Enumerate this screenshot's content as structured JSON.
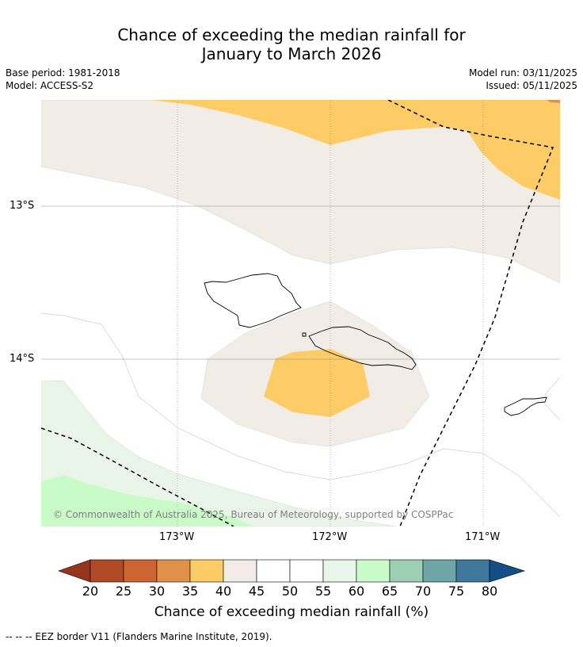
{
  "title": {
    "line1": "Chance of exceeding the median rainfall for",
    "line2": "January to March 2026"
  },
  "meta": {
    "base_period": "Base period: 1981-2018",
    "model": "Model: ACCESS-S2",
    "model_run": "Model run: 03/11/2025",
    "issued": "Issued: 05/11/2025"
  },
  "map": {
    "lat_labels": [
      "13°S",
      "14°S"
    ],
    "lon_labels": [
      "173°W",
      "172°W",
      "171°W"
    ],
    "copyright": "© Commonwealth of Australia 2025, Bureau of Meteorology, supported by COSPPac"
  },
  "colorbar": {
    "ticks": [
      "20",
      "25",
      "30",
      "35",
      "40",
      "45",
      "50",
      "55",
      "60",
      "65",
      "70",
      "75",
      "80"
    ],
    "label": "Chance of exceeding median rainfall (%)",
    "colors": [
      "#b04a27",
      "#cd6533",
      "#e0924a",
      "#fdcc66",
      "#f1ece6",
      "#ffffff",
      "#ffffff",
      "#e9f5e8",
      "#c8fbc8",
      "#9ccfb4",
      "#70a5a8",
      "#40789b"
    ],
    "below_color": "#953520",
    "above_color": "#134e86"
  },
  "legend_note": "--  --  -- EEZ border V11 (Flanders Marine Institute, 2019)."
}
